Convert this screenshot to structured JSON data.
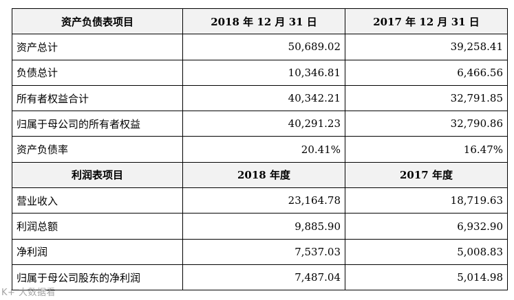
{
  "balance_sheet": {
    "header": {
      "item": "资产负债表项目",
      "col1": "2018 年 12 月 31 日",
      "col2": "2017 年 12 月 31 日"
    },
    "rows": [
      {
        "label": "资产总计",
        "v1": "50,689.02",
        "v2": "39,258.41"
      },
      {
        "label": "负债总计",
        "v1": "10,346.81",
        "v2": "6,466.56"
      },
      {
        "label": "所有者权益合计",
        "v1": "40,342.21",
        "v2": "32,791.85"
      },
      {
        "label": "归属于母公司的所有者权益",
        "v1": "40,291.23",
        "v2": "32,790.86"
      },
      {
        "label": "资产负债率",
        "v1": "20.41%",
        "v2": "16.47%"
      }
    ]
  },
  "income_statement": {
    "header": {
      "item": "利润表项目",
      "col1": "2018 年度",
      "col2": "2017 年度"
    },
    "rows": [
      {
        "label": "营业收入",
        "v1": "23,164.78",
        "v2": "18,719.63"
      },
      {
        "label": "利润总额",
        "v1": "9,885.90",
        "v2": "6,932.90"
      },
      {
        "label": "净利润",
        "v1": "7,537.03",
        "v2": "5,008.83"
      },
      {
        "label": "归属于母公司股东的净利润",
        "v1": "7,487.04",
        "v2": "5,014.98"
      }
    ]
  },
  "watermark": "K+ 大数据看"
}
